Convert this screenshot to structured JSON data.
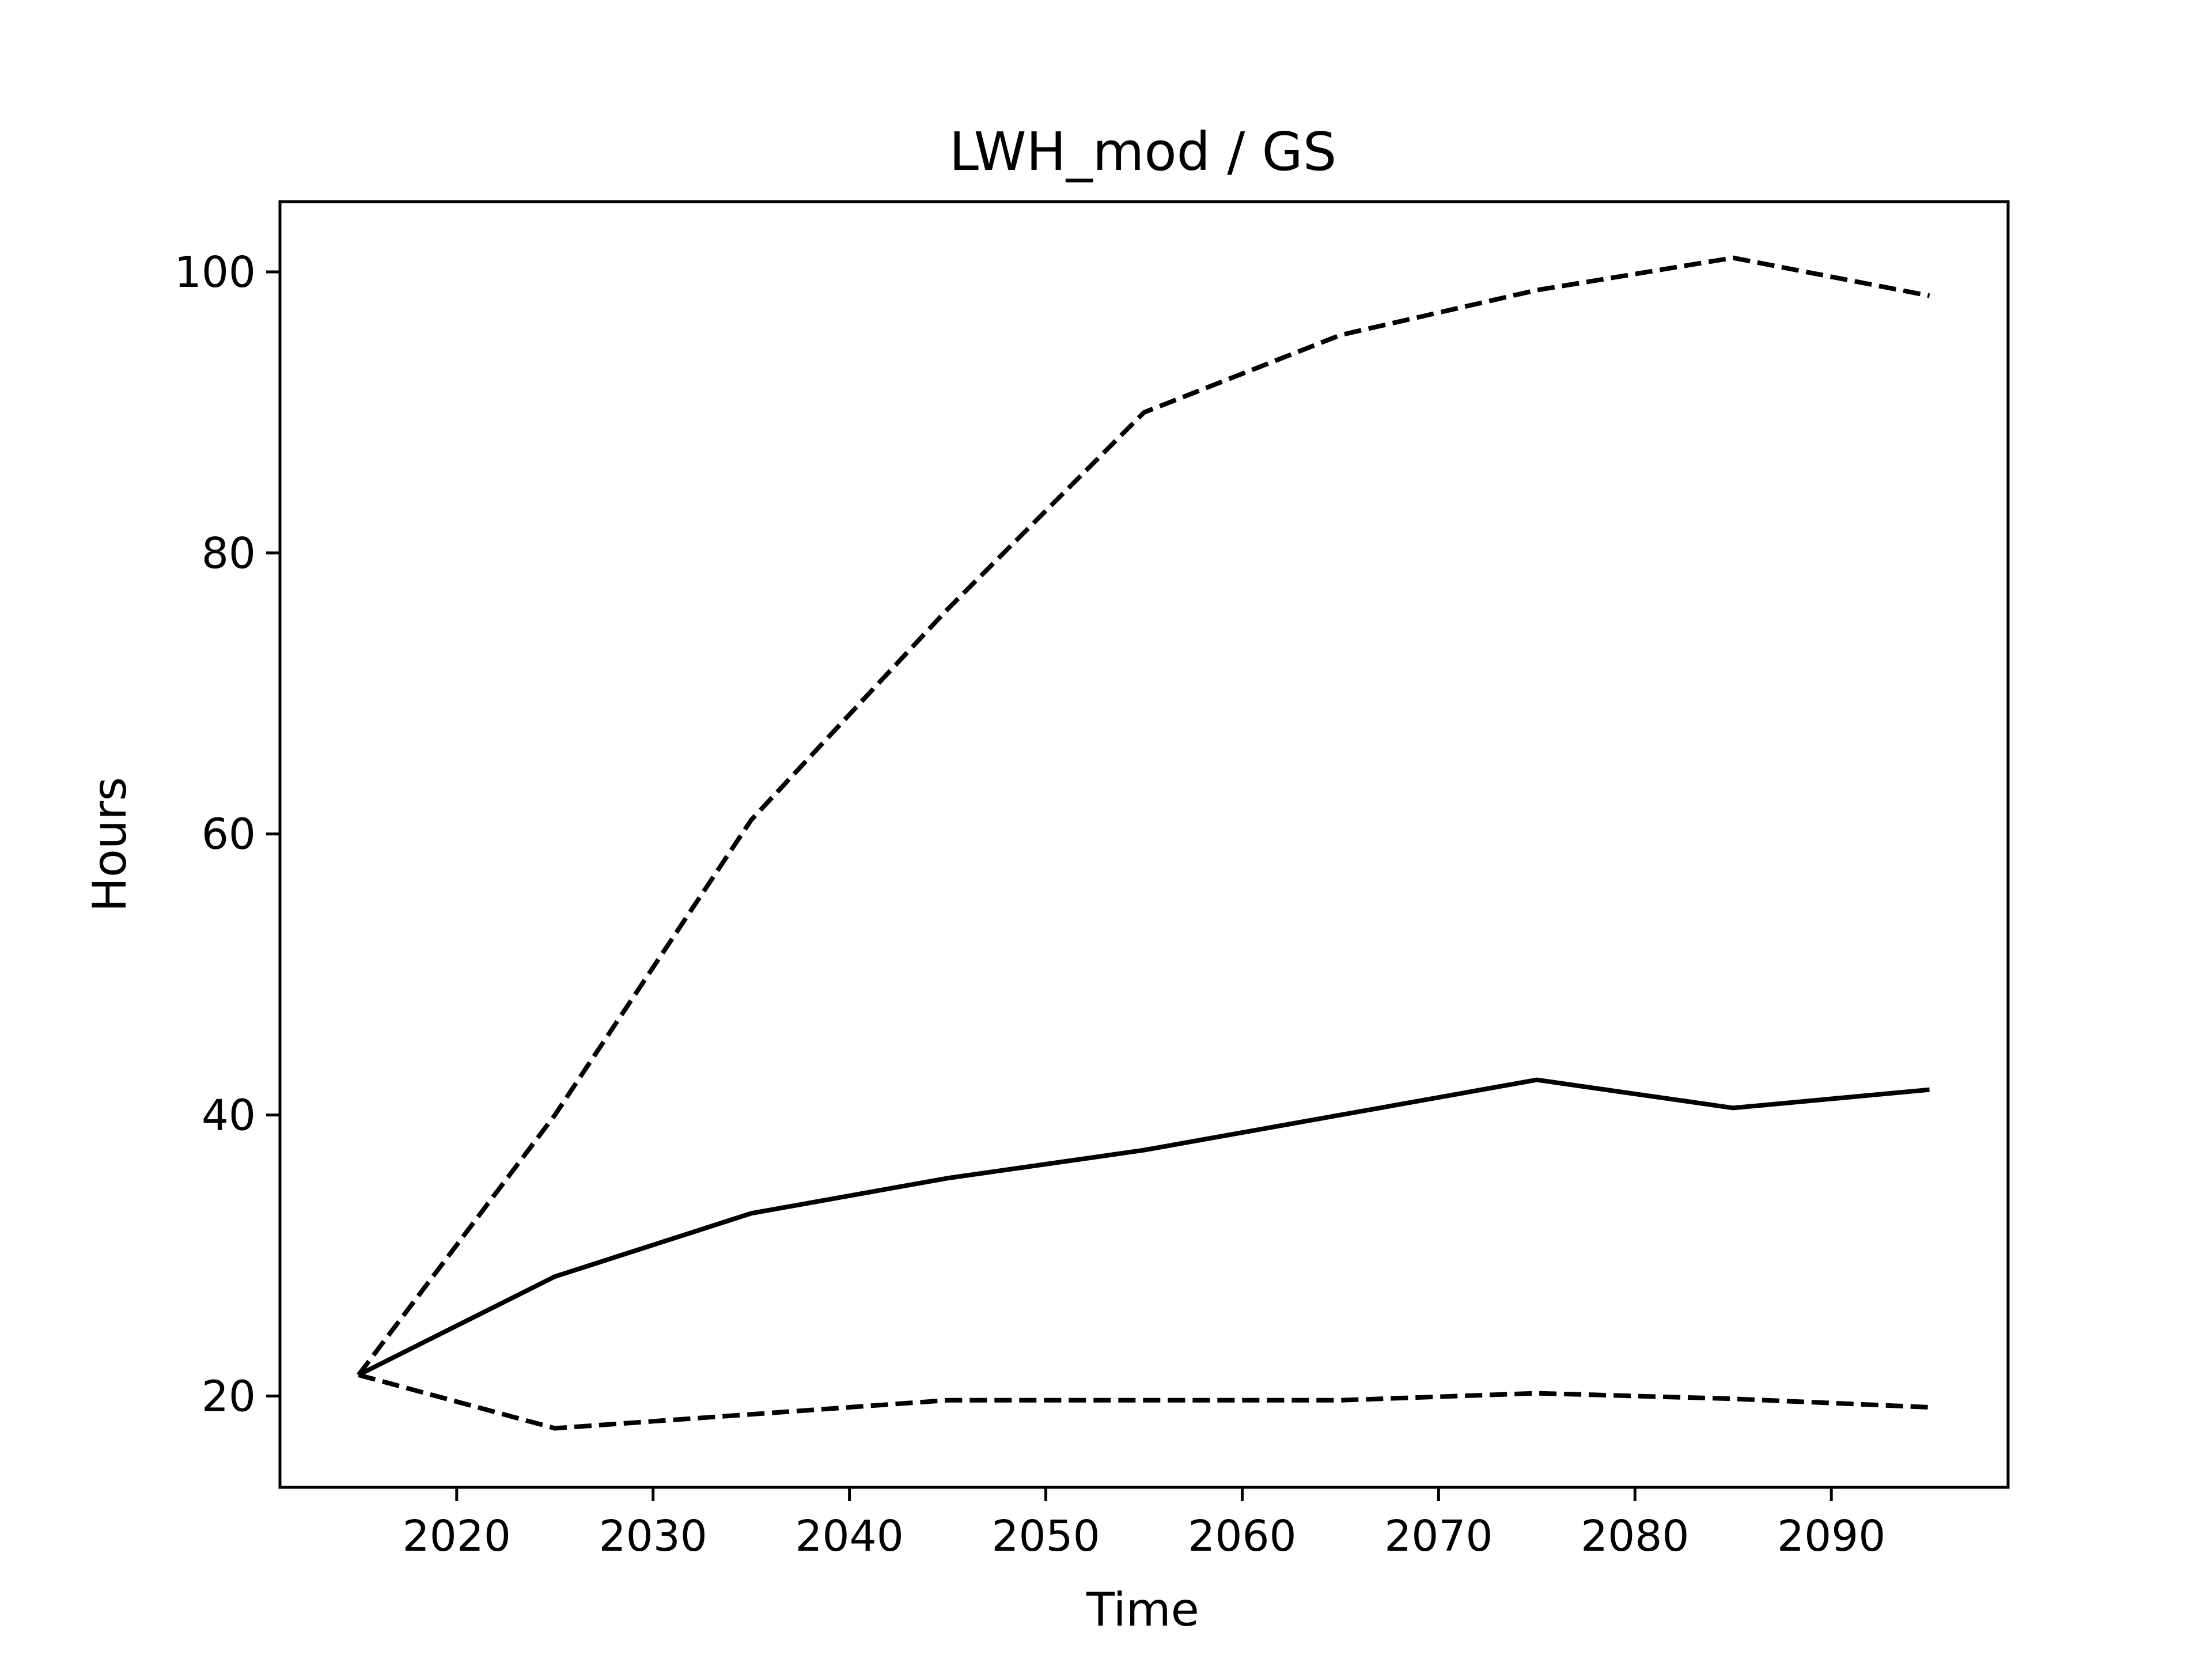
{
  "chart_data": {
    "type": "line",
    "title": "LWH_mod / GS",
    "xlabel": "Time",
    "ylabel": "Hours",
    "xlim": [
      2011,
      2099
    ],
    "ylim": [
      13.5,
      105
    ],
    "xticks": [
      2020,
      2030,
      2040,
      2050,
      2060,
      2070,
      2080,
      2090
    ],
    "yticks": [
      20,
      40,
      60,
      80,
      100
    ],
    "grid": false,
    "legend": false,
    "x": [
      2015,
      2025,
      2035,
      2045,
      2055,
      2065,
      2075,
      2085,
      2095
    ],
    "series": [
      {
        "style": "solid",
        "color": "#000000",
        "values": [
          21.5,
          28.5,
          33.0,
          35.5,
          37.5,
          40.0,
          42.5,
          40.5,
          41.8
        ]
      },
      {
        "style": "dashed",
        "color": "#000000",
        "values": [
          21.5,
          40.0,
          61.0,
          76.0,
          90.0,
          95.5,
          98.7,
          101.0,
          98.3
        ]
      },
      {
        "style": "dashed",
        "color": "#000000",
        "values": [
          21.5,
          17.7,
          18.7,
          19.7,
          19.7,
          19.7,
          20.2,
          19.8,
          19.2
        ]
      }
    ]
  }
}
